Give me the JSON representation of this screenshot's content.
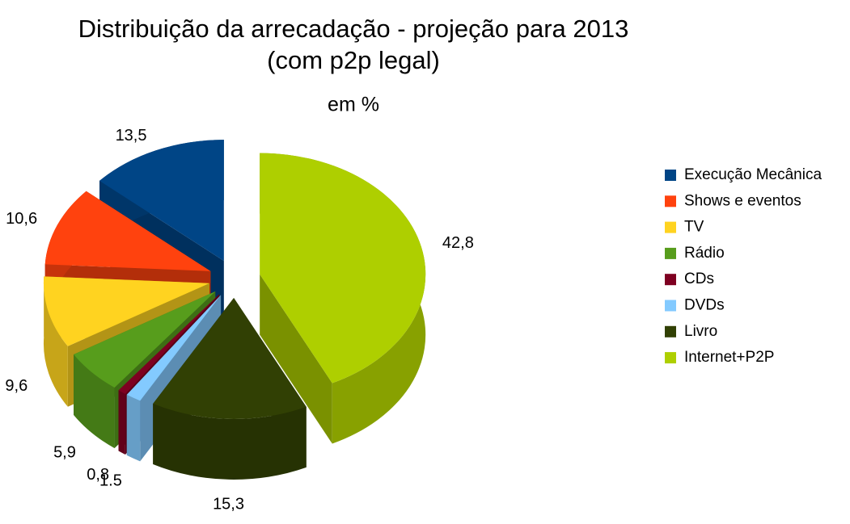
{
  "chart_data": {
    "type": "pie3d",
    "title": [
      "Distribuição da arrecadação - projeção para 2013",
      "(com p2p legal)"
    ],
    "subtitle": "em %",
    "series": [
      {
        "name": "Execução Mecânica",
        "color": "#004586",
        "values": [
          13.5
        ],
        "value_labels": [
          "13,5"
        ]
      },
      {
        "name": "Shows e eventos",
        "color": "#ff420e",
        "values": [
          10.6
        ],
        "value_labels": [
          "10,6"
        ]
      },
      {
        "name": "TV",
        "color": "#ffd320",
        "values": [
          9.6
        ],
        "value_labels": [
          "9,6"
        ]
      },
      {
        "name": "Rádio",
        "color": "#579d1c",
        "values": [
          5.9
        ],
        "value_labels": [
          "5,9"
        ]
      },
      {
        "name": "CDs",
        "color": "#7e0021",
        "values": [
          0.8
        ],
        "value_labels": [
          "0,8"
        ]
      },
      {
        "name": "DVDs",
        "color": "#83caff",
        "values": [
          1.5
        ],
        "value_labels": [
          "1.5"
        ]
      },
      {
        "name": "Livro",
        "color": "#314004",
        "values": [
          15.3
        ],
        "value_labels": [
          "15,3"
        ]
      },
      {
        "name": "Internet+P2P",
        "color": "#aecf00",
        "values": [
          42.8
        ],
        "value_labels": [
          "42,8"
        ]
      }
    ],
    "legend": "right"
  }
}
